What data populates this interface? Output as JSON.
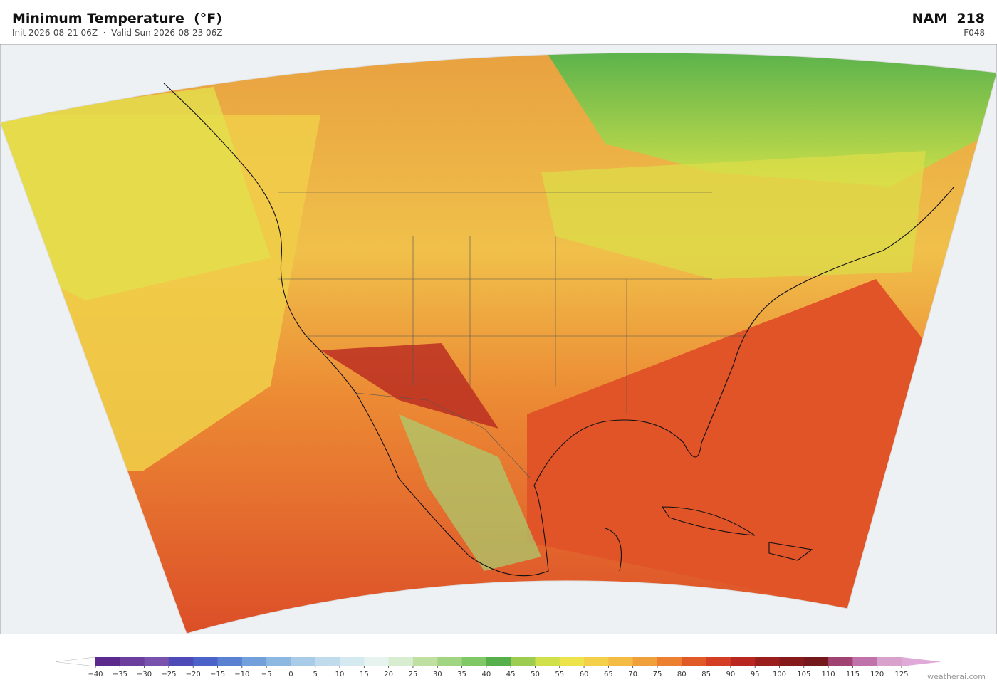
{
  "header": {
    "title": "Minimum Temperature  (°F)",
    "subtitle": "Init 2026-08-21 06Z  ·  Valid Sun 2026-08-23 06Z",
    "model": "NAM  218",
    "forecast_hour": "F048"
  },
  "colorbar": {
    "ticks": [
      {
        "value": -40,
        "label": "−40"
      },
      {
        "value": -35,
        "label": "−35"
      },
      {
        "value": -30,
        "label": "−30"
      },
      {
        "value": -25,
        "label": "−25"
      },
      {
        "value": -20,
        "label": "−20"
      },
      {
        "value": -15,
        "label": "−15"
      },
      {
        "value": -10,
        "label": "−10"
      },
      {
        "value": -5,
        "label": "−5"
      },
      0,
      5,
      10,
      15,
      20,
      25,
      30,
      35,
      40,
      45,
      50,
      55,
      60,
      65,
      70,
      75,
      80,
      85,
      90,
      95,
      100,
      105,
      110,
      115,
      120,
      125
    ],
    "colors": [
      "#5b2a8c",
      "#6c3e9e",
      "#7852ad",
      "#4e4ab8",
      "#4b62c8",
      "#5a80d2",
      "#72a0da",
      "#8cb8e2",
      "#a8cce8",
      "#c0dcec",
      "#d4e9f0",
      "#e6f3ee",
      "#d8ecd0",
      "#bfe0a0",
      "#a2d582",
      "#80c866",
      "#55b04c",
      "#9ccc50",
      "#cfe04a",
      "#ece44a",
      "#f4d04a",
      "#f4bc44",
      "#f0a03a",
      "#ec8030",
      "#e05a28",
      "#d43e24",
      "#b82820",
      "#9a1e1c",
      "#861a1a",
      "#74181c",
      "#a04272",
      "#c072aa",
      "#d8a2cc"
    ],
    "under_color": "#ffffff",
    "over_color": "#e0aad8"
  },
  "watermark": "weatherai.com"
}
